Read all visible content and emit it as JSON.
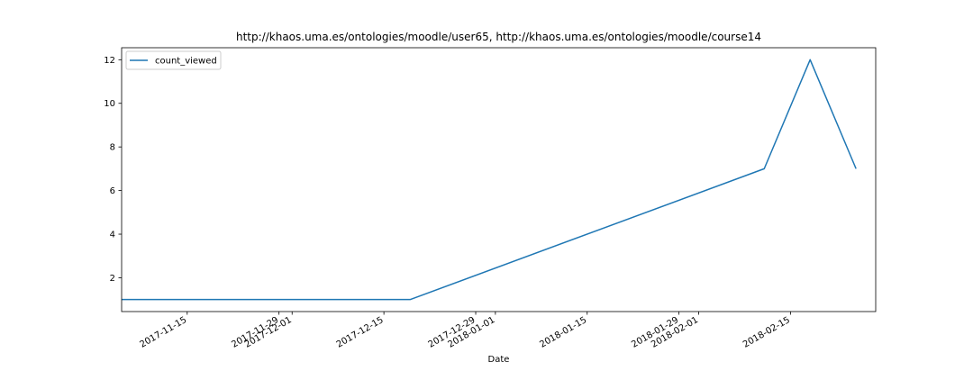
{
  "chart_data": {
    "type": "line",
    "title": "http://khaos.uma.es/ontologies/moodle/user65, http://khaos.uma.es/ontologies/moodle/course14",
    "xlabel": "Date",
    "ylabel": "",
    "xlim": [
      "2017-11-05",
      "2018-02-28"
    ],
    "ylim": [
      0.45,
      12.55
    ],
    "yticks": [
      2,
      4,
      6,
      8,
      10,
      12
    ],
    "xticks": [
      "2017-11-15",
      "2017-11-29",
      "2017-12-01",
      "2017-12-15",
      "2017-12-29",
      "2018-01-01",
      "2018-01-15",
      "2018-01-29",
      "2018-02-01",
      "2018-02-15"
    ],
    "legend_position": "upper-left",
    "grid": false,
    "series": [
      {
        "name": "count_viewed",
        "color": "#1f77b4",
        "x": [
          "2017-11-05",
          "2017-12-19",
          "2018-02-11",
          "2018-02-18",
          "2018-02-25"
        ],
        "y": [
          1,
          1,
          7,
          12,
          7
        ]
      }
    ]
  }
}
